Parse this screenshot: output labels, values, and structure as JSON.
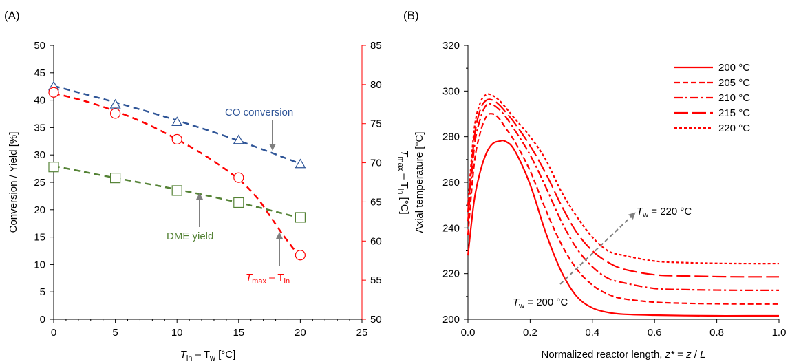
{
  "panels": {
    "a": "(A)",
    "b": "(B)"
  },
  "chart_data": [
    {
      "type": "scatter",
      "x_axis": {
        "label_main": "T",
        "label_sub1": "in",
        "label_mid": " – T",
        "label_sub2": "w",
        "label_end": " [°C]",
        "min": 0,
        "max": 25,
        "ticks": [
          0,
          5,
          10,
          15,
          20,
          25
        ]
      },
      "y_axis_left": {
        "label": "Conversion / Yield [%]",
        "min": 0,
        "max": 50,
        "ticks": [
          0,
          5,
          10,
          15,
          20,
          25,
          30,
          35,
          40,
          45,
          50
        ]
      },
      "y_axis_right": {
        "label_main": "T",
        "label_sub1": "max",
        "label_mid": " – T",
        "label_sub2": "in",
        "label_end": " [°C]",
        "min": 50,
        "max": 85,
        "ticks": [
          50,
          55,
          60,
          65,
          70,
          75,
          80,
          85
        ],
        "color": "#ff0000"
      },
      "series": [
        {
          "axis": "left",
          "marker": "triangle",
          "color": "#2f5597",
          "x": [
            0,
            5,
            10,
            15,
            20
          ],
          "y": [
            42.5,
            39.2,
            36.0,
            32.7,
            28.3
          ],
          "fit_x": [
            0,
            5,
            10,
            15,
            20
          ],
          "fit_y": [
            42.6,
            39.6,
            36.3,
            32.6,
            28.4
          ]
        },
        {
          "axis": "left",
          "marker": "square",
          "color": "#548235",
          "x": [
            0,
            5,
            10,
            15,
            20
          ],
          "y": [
            27.8,
            25.8,
            23.5,
            21.3,
            18.6
          ],
          "fit_x": [
            0,
            5,
            10,
            15,
            20
          ],
          "fit_y": [
            28.0,
            25.8,
            23.7,
            21.3,
            18.5
          ]
        },
        {
          "axis": "right",
          "marker": "circle",
          "color": "#ff0000",
          "x": [
            0,
            5,
            10,
            15,
            20
          ],
          "y": [
            79.0,
            76.3,
            73.0,
            68.1,
            58.2
          ],
          "fit_x": [
            0,
            2.5,
            5,
            7.5,
            10,
            12.5,
            15,
            16.5,
            17.5,
            18.5,
            19.5,
            20
          ],
          "fit_y": [
            78.9,
            77.9,
            76.6,
            75.0,
            73.0,
            70.7,
            67.9,
            65.5,
            63.3,
            61.0,
            58.9,
            58.0
          ]
        }
      ],
      "annotations": {
        "co": "CO conversion",
        "dme": "DME yield",
        "dt_main": "T",
        "dt_sub1": "max",
        "dt_mid": " – T",
        "dt_sub2": "in"
      }
    },
    {
      "type": "line",
      "x_axis": {
        "label_pre": "Normalized reactor length, ",
        "label_var": "z*",
        "label_mid": " = ",
        "label_var2": "z",
        "label_sep": " / ",
        "label_var3": "L",
        "min": 0,
        "max": 1,
        "ticks": [
          "0.0",
          "0.2",
          "0.4",
          "0.6",
          "0.8",
          "1.0"
        ]
      },
      "y_axis": {
        "label": "Axial temperature [°C]",
        "min": 200,
        "max": 320,
        "ticks": [
          200,
          220,
          240,
          260,
          280,
          300,
          320
        ]
      },
      "x": [
        0,
        0.02,
        0.04,
        0.06,
        0.08,
        0.1,
        0.12,
        0.15,
        0.2,
        0.25,
        0.3,
        0.35,
        0.4,
        0.45,
        0.5,
        0.6,
        0.7,
        0.8,
        0.9,
        1.0
      ],
      "series": [
        {
          "name": "200 °C",
          "dash": "solid",
          "color": "#ff0000",
          "y": [
            228,
            252,
            265,
            273,
            277,
            278,
            278,
            274,
            259,
            238,
            221,
            210,
            205,
            203,
            202.2,
            201.8,
            201.6,
            201.5,
            201.5,
            201.5
          ]
        },
        {
          "name": "205 °C",
          "dash": "long",
          "color": "#ff0000",
          "y": [
            237,
            268,
            282,
            289,
            290,
            288,
            284,
            278,
            265,
            248,
            233,
            222,
            215,
            211,
            209,
            207.5,
            207,
            206.8,
            206.7,
            206.7
          ]
        },
        {
          "name": "210 °C",
          "dash": "dashdot",
          "color": "#ff0000",
          "y": [
            243,
            275,
            288,
            294,
            294,
            292,
            289,
            283,
            272,
            258,
            243,
            231,
            223,
            218,
            216,
            213.5,
            213,
            212.8,
            212.7,
            212.7
          ]
        },
        {
          "name": "215 °C",
          "dash": "longdash",
          "color": "#ff0000",
          "y": [
            247,
            279,
            292,
            296,
            296,
            294,
            291,
            286,
            276,
            264,
            250,
            238,
            230,
            225,
            222,
            219.5,
            219,
            218.7,
            218.6,
            218.6
          ]
        },
        {
          "name": "220 °C",
          "dash": "short",
          "color": "#ff0000",
          "y": [
            250,
            283,
            295,
            298.5,
            298,
            296,
            293,
            288,
            280,
            270,
            256,
            245,
            236,
            230,
            228,
            225.5,
            224.8,
            224.5,
            224.4,
            224.4
          ]
        }
      ],
      "annotations": {
        "tw_top_main": "T",
        "tw_top_sub": "w",
        "tw_top_rest": " = 220 °C",
        "tw_bot_main": "T",
        "tw_bot_sub": "w",
        "tw_bot_rest": " = 200 °C"
      }
    }
  ]
}
